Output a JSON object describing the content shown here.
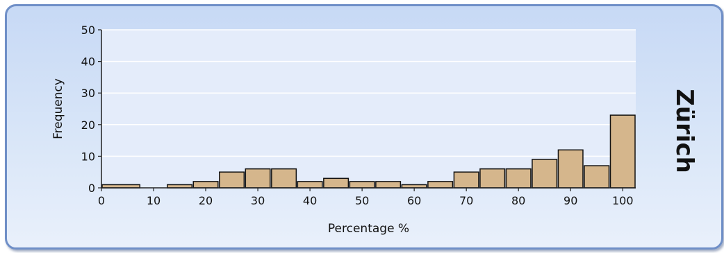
{
  "panel_label": "Zürich",
  "chart_data": {
    "type": "bar",
    "title": "",
    "xlabel": "Percentage %",
    "ylabel": "Frequency",
    "xlim": [
      0,
      102.5
    ],
    "ylim": [
      0,
      50
    ],
    "x_ticks": [
      0,
      10,
      20,
      30,
      40,
      50,
      60,
      70,
      80,
      90,
      100
    ],
    "y_ticks": [
      0,
      10,
      20,
      30,
      40,
      50
    ],
    "bin_width": 5,
    "bins": [
      {
        "start": 0,
        "end": 7.5,
        "value": 1
      },
      {
        "start": 7.5,
        "end": 12.5,
        "value": 0
      },
      {
        "start": 12.5,
        "end": 17.5,
        "value": 1
      },
      {
        "start": 17.5,
        "end": 22.5,
        "value": 2
      },
      {
        "start": 22.5,
        "end": 27.5,
        "value": 5
      },
      {
        "start": 27.5,
        "end": 32.5,
        "value": 6
      },
      {
        "start": 32.5,
        "end": 37.5,
        "value": 6
      },
      {
        "start": 37.5,
        "end": 42.5,
        "value": 2
      },
      {
        "start": 42.5,
        "end": 47.5,
        "value": 3
      },
      {
        "start": 47.5,
        "end": 52.5,
        "value": 2
      },
      {
        "start": 52.5,
        "end": 57.5,
        "value": 2
      },
      {
        "start": 57.5,
        "end": 62.5,
        "value": 1
      },
      {
        "start": 62.5,
        "end": 67.5,
        "value": 2
      },
      {
        "start": 67.5,
        "end": 72.5,
        "value": 5
      },
      {
        "start": 72.5,
        "end": 77.5,
        "value": 6
      },
      {
        "start": 77.5,
        "end": 82.5,
        "value": 6
      },
      {
        "start": 82.5,
        "end": 87.5,
        "value": 9
      },
      {
        "start": 87.5,
        "end": 92.5,
        "value": 12
      },
      {
        "start": 92.5,
        "end": 97.5,
        "value": 7
      },
      {
        "start": 97.5,
        "end": 102.5,
        "value": 23
      }
    ],
    "grid": true,
    "bar_color": "#d5b68c",
    "bar_edge_color": "#111111",
    "plot_background": "#e4ecfa",
    "grid_color": "#ffffff"
  }
}
